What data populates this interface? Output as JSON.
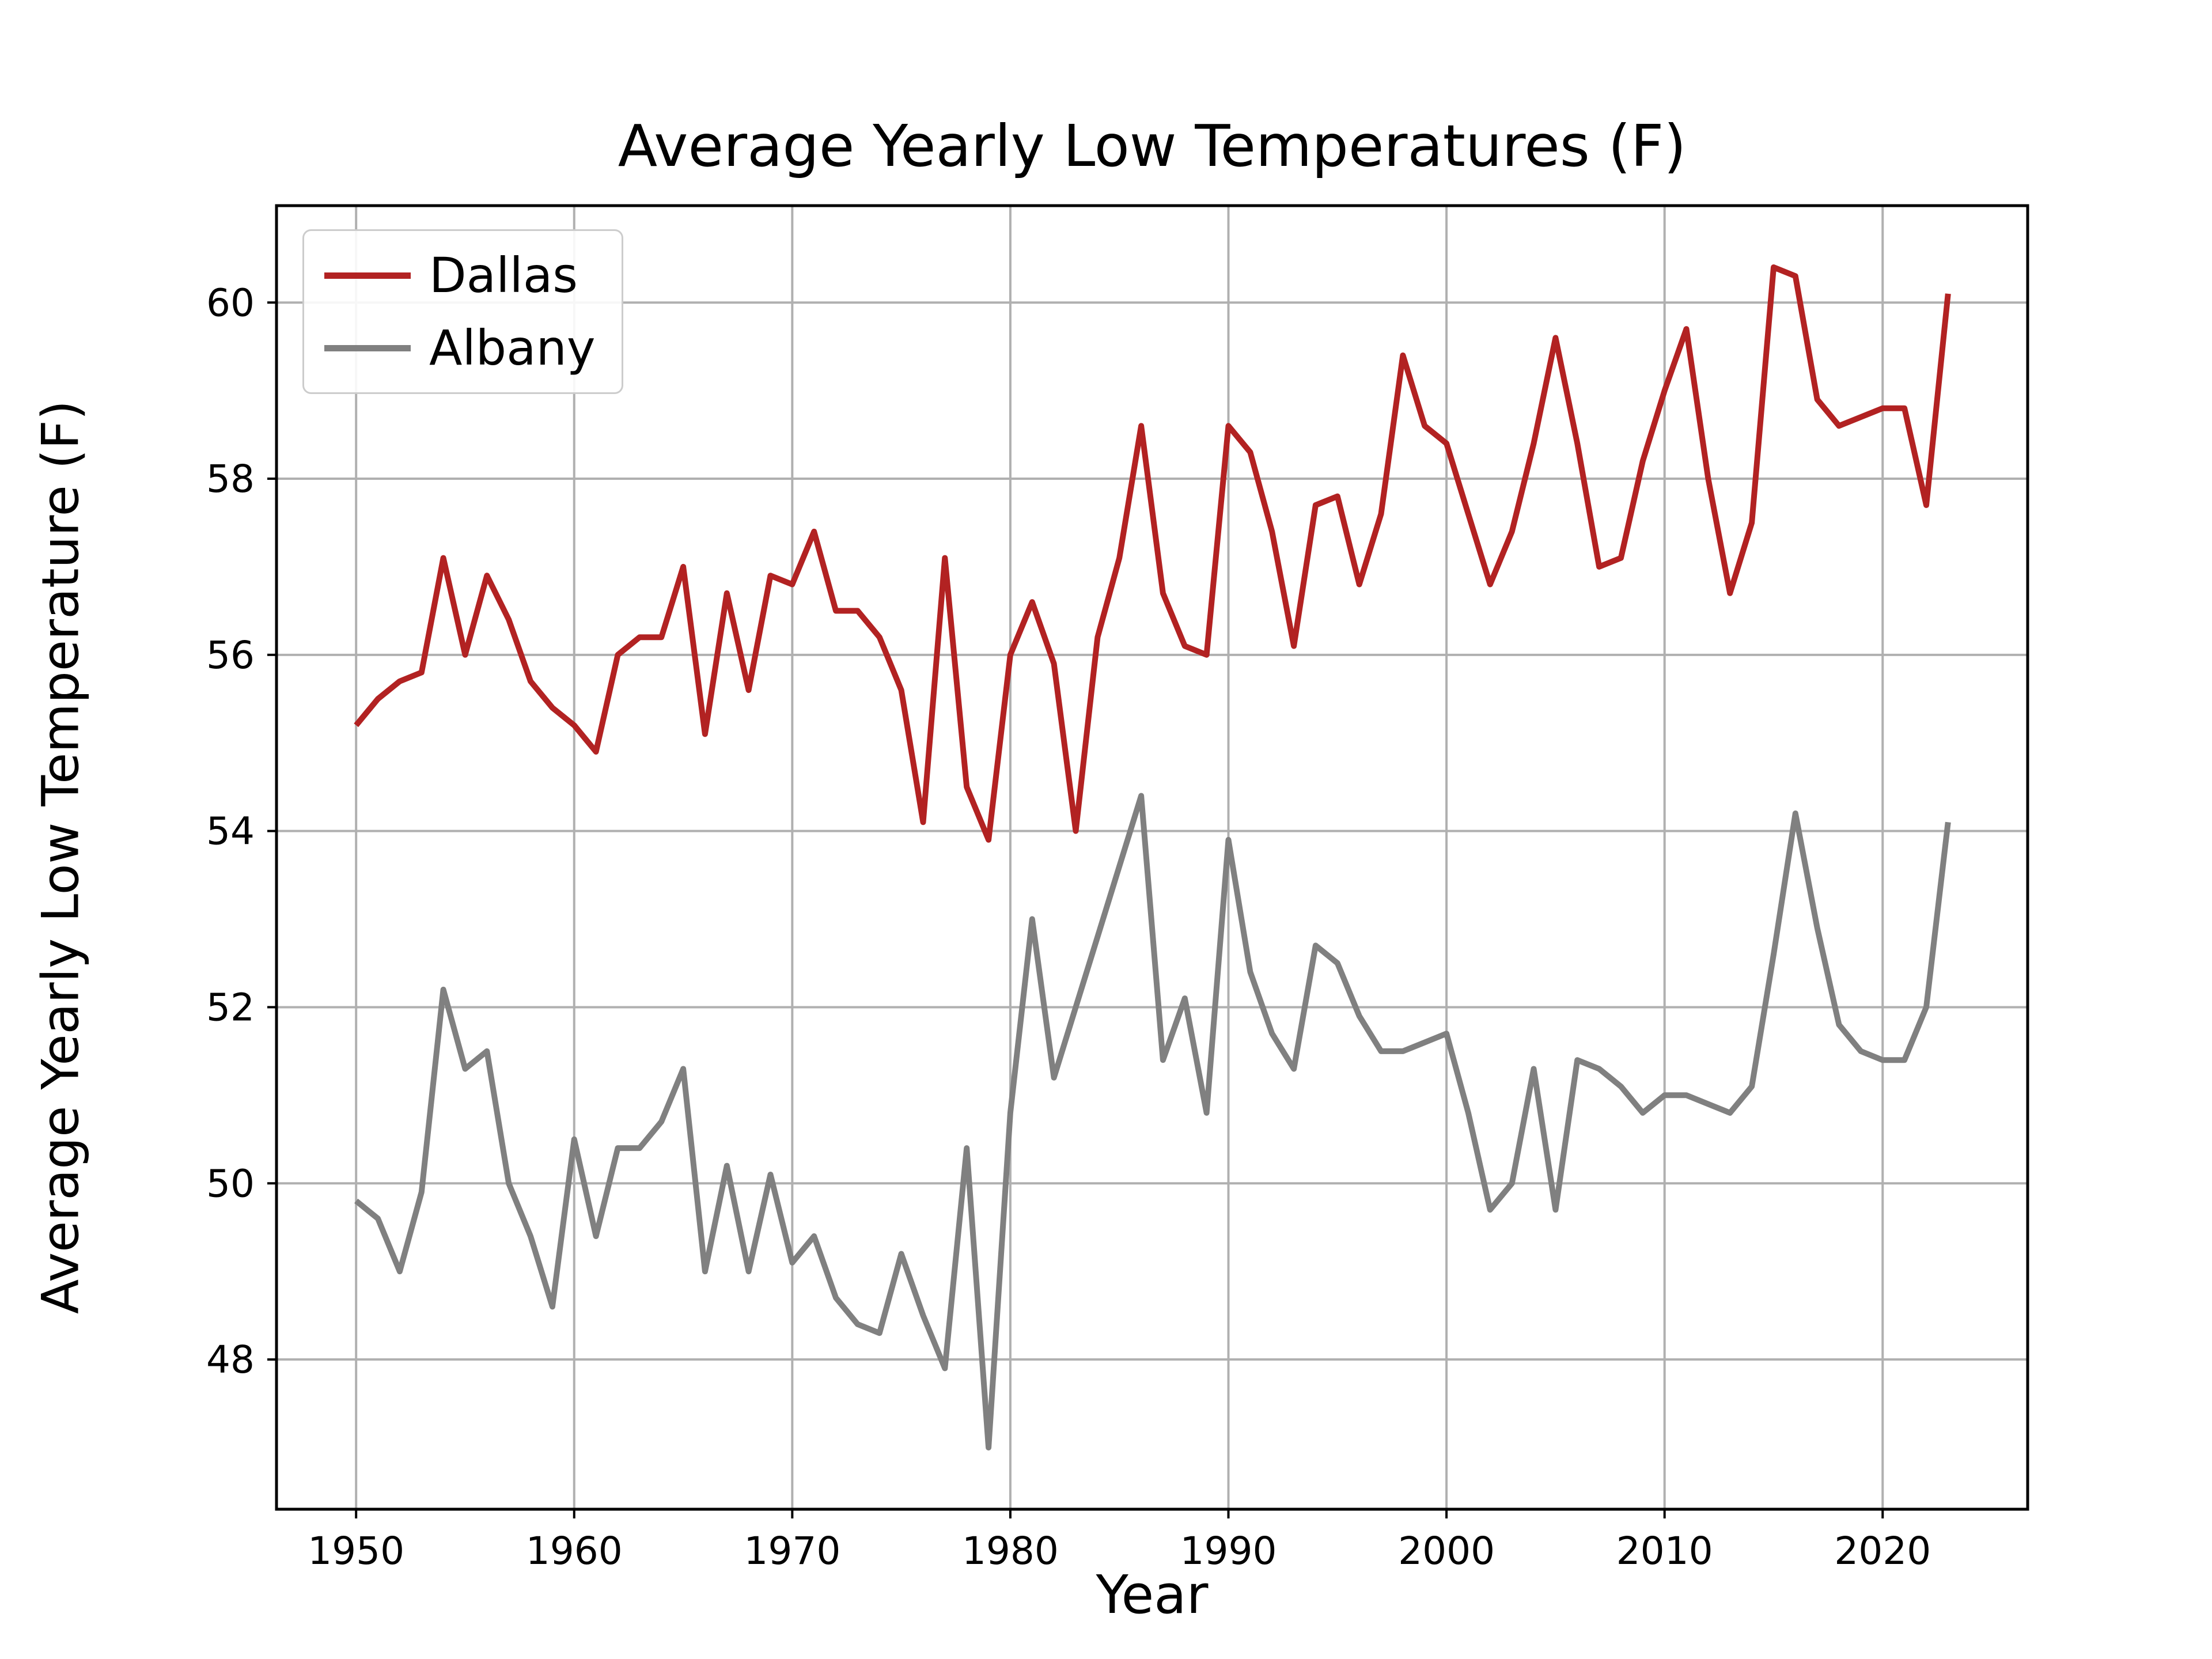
{
  "figure": {
    "background": "#ffffff"
  },
  "chart_data": {
    "type": "line",
    "title": "Average Yearly Low Temperatures (F)",
    "xlabel": "Year",
    "ylabel": "Average Yearly Low Temperature (F)",
    "grid": true,
    "grid_color": "#b0b0b0",
    "spine_color": "#000000",
    "legend_position": "upper-left",
    "xlim": [
      1946.35,
      2026.65
    ],
    "ylim": [
      46.3,
      61.1
    ],
    "xticks": [
      1950,
      1960,
      1970,
      1980,
      1990,
      2000,
      2010,
      2020
    ],
    "yticks": [
      48,
      50,
      52,
      54,
      56,
      58,
      60
    ],
    "x": [
      1950,
      1951,
      1952,
      1953,
      1954,
      1955,
      1956,
      1957,
      1958,
      1959,
      1960,
      1961,
      1962,
      1963,
      1964,
      1965,
      1966,
      1967,
      1968,
      1969,
      1970,
      1971,
      1972,
      1973,
      1974,
      1975,
      1976,
      1977,
      1978,
      1979,
      1980,
      1981,
      1982,
      1983,
      1984,
      1985,
      1986,
      1987,
      1988,
      1989,
      1990,
      1991,
      1992,
      1993,
      1994,
      1995,
      1996,
      1997,
      1998,
      1999,
      2000,
      2001,
      2002,
      2003,
      2004,
      2005,
      2006,
      2007,
      2008,
      2009,
      2010,
      2011,
      2012,
      2013,
      2014,
      2015,
      2016,
      2017,
      2018,
      2019,
      2020,
      2021,
      2022,
      2023
    ],
    "series": [
      {
        "name": "Dallas",
        "color": "#b22222",
        "values": [
          55.2,
          55.5,
          55.7,
          55.8,
          57.1,
          56.0,
          56.9,
          56.4,
          55.7,
          55.4,
          55.2,
          54.9,
          56.0,
          56.2,
          56.2,
          57.0,
          55.1,
          56.7,
          55.6,
          56.9,
          56.8,
          57.4,
          56.5,
          56.5,
          56.2,
          55.6,
          54.1,
          57.1,
          54.5,
          53.9,
          56.0,
          56.6,
          55.9,
          54.0,
          56.2,
          57.1,
          58.6,
          56.7,
          56.1,
          56.0,
          58.6,
          58.3,
          57.4,
          56.1,
          57.7,
          57.8,
          56.8,
          57.6,
          59.4,
          58.6,
          58.4,
          57.6,
          56.8,
          57.4,
          58.4,
          59.6,
          58.4,
          57.0,
          57.1,
          58.2,
          59.0,
          59.7,
          58.0,
          56.7,
          57.5,
          60.4,
          60.3,
          58.9,
          58.6,
          58.7,
          58.8,
          58.8,
          57.7,
          60.1
        ]
      },
      {
        "name": "Albany",
        "color": "#808080",
        "values": [
          49.8,
          49.6,
          49.0,
          49.9,
          52.2,
          51.3,
          51.5,
          50.0,
          49.4,
          48.6,
          50.5,
          49.4,
          50.4,
          50.4,
          50.7,
          51.3,
          49.0,
          50.2,
          49.0,
          50.1,
          49.1,
          49.4,
          48.7,
          48.4,
          48.3,
          49.2,
          48.5,
          47.9,
          50.4,
          47.0,
          50.8,
          53.0,
          51.2,
          52.0,
          52.8,
          53.6,
          54.4,
          51.4,
          52.1,
          50.8,
          53.9,
          52.4,
          51.7,
          51.3,
          52.7,
          52.5,
          51.9,
          51.5,
          51.5,
          51.6,
          51.7,
          50.8,
          49.7,
          50.0,
          51.3,
          49.7,
          51.4,
          51.3,
          51.1,
          50.8,
          51.0,
          51.0,
          50.9,
          50.8,
          51.1,
          52.6,
          54.2,
          52.9,
          51.8,
          51.5,
          51.4,
          51.4,
          52.0,
          54.1
        ]
      }
    ]
  }
}
